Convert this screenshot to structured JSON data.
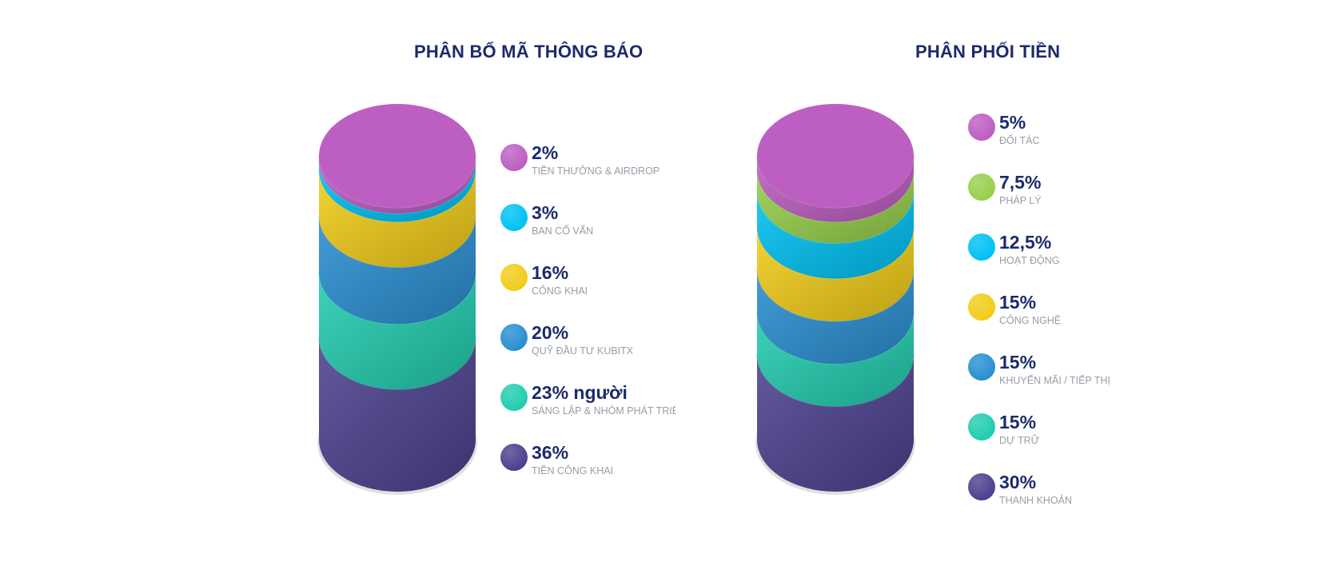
{
  "chart_data": [
    {
      "type": "stacked-cylinder",
      "title": "PHÂN BỔ MÃ THÔNG BÁO",
      "categories": [
        "TIỀN THƯỞNG & AIRDROP",
        "BAN CỐ VẤN",
        "CÔNG KHAI",
        "QUỸ ĐẦU TƯ KUBITX",
        "SÁNG LẬP & NHÓM PHÁT TRIỂ",
        "TIỀN CÔNG KHAI"
      ],
      "value_labels": [
        "2%",
        "3%",
        "16%",
        "20%",
        "23% người",
        "36%"
      ],
      "values": [
        2,
        3,
        16,
        20,
        23,
        36
      ],
      "colors": [
        "#bd5fc2",
        "#00c2f3",
        "#f2cd1a",
        "#2a8fd2",
        "#22cdb0",
        "#4d418f"
      ]
    },
    {
      "type": "stacked-cylinder",
      "title": "PHÂN PHỐI TIỀN",
      "categories": [
        "ĐỐI TÁC",
        "PHÁP LÝ",
        "HOẠT ĐỘNG",
        "CÔNG NGHỆ",
        "KHUYẾN MÃI / TIẾP THỊ",
        "DỰ TRỮ",
        "THANH KHOẢN"
      ],
      "value_labels": [
        "5%",
        "7,5%",
        "12,5%",
        "15%",
        "15%",
        "15%",
        "30%"
      ],
      "values": [
        5,
        7.5,
        12.5,
        15,
        15,
        15,
        30
      ],
      "colors": [
        "#bd5fc2",
        "#97d04c",
        "#00c2f3",
        "#f2cd1a",
        "#2a8fd2",
        "#22cdb0",
        "#4d418f"
      ]
    }
  ]
}
